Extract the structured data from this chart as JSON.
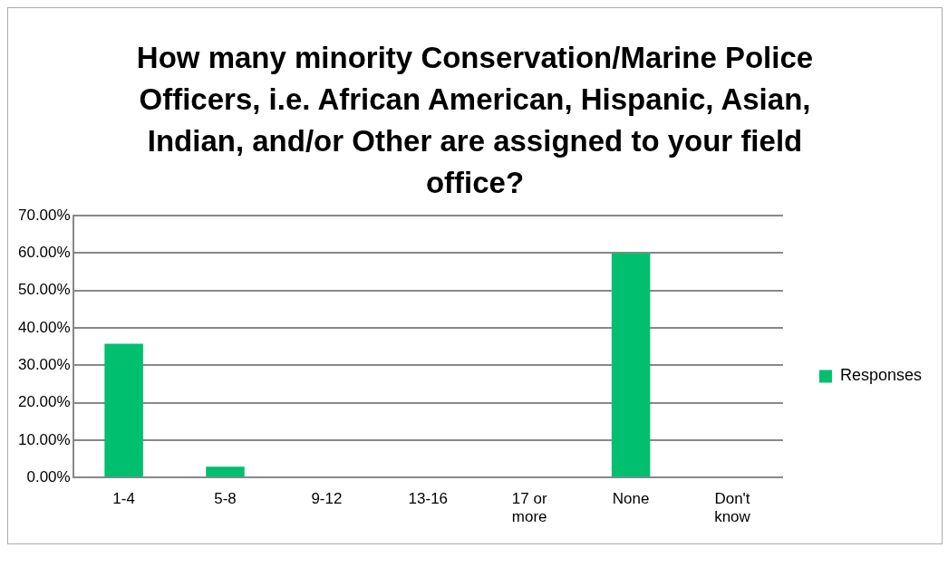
{
  "chart_data": {
    "type": "bar",
    "title": "How many minority Conservation/Marine Police Officers, i.e. African American, Hispanic, Asian, Indian, and/or Other are assigned to your field office?",
    "categories": [
      "1-4",
      "5-8",
      "9-12",
      "13-16",
      "17 or more",
      "None",
      "Don't know"
    ],
    "series": [
      {
        "name": "Responses",
        "color": "#00bf6f",
        "values": [
          35.8,
          2.9,
          0,
          0,
          0,
          60,
          0
        ]
      }
    ],
    "ylim": [
      0,
      70
    ],
    "yticks": [
      {
        "value": 0,
        "label": "0.00%"
      },
      {
        "value": 10,
        "label": "10.00%"
      },
      {
        "value": 20,
        "label": "20.00%"
      },
      {
        "value": 30,
        "label": "30.00%"
      },
      {
        "value": 40,
        "label": "40.00%"
      },
      {
        "value": 50,
        "label": "50.00%"
      },
      {
        "value": 60,
        "label": "60.00%"
      },
      {
        "value": 70,
        "label": "70.00%"
      }
    ],
    "grid": "y",
    "legend": "right"
  }
}
